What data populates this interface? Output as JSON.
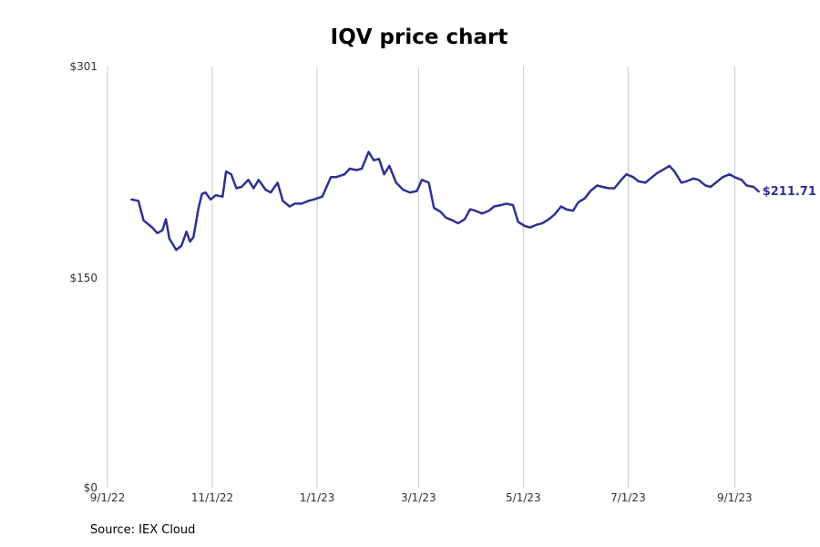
{
  "chart_data": {
    "type": "line",
    "title": "IQV price chart",
    "source": "Source: IEX Cloud",
    "xlabel": "",
    "ylabel": "",
    "ylim": [
      0,
      301
    ],
    "xlim": [
      "2022-09-01",
      "2023-09-30"
    ],
    "y_ticks": [
      {
        "value": 0,
        "label": "$0"
      },
      {
        "value": 150,
        "label": "$150"
      },
      {
        "value": 301,
        "label": "$301"
      }
    ],
    "x_ticks": [
      {
        "date": "2022-09-01",
        "label": "9/1/22"
      },
      {
        "date": "2022-11-01",
        "label": "11/1/22"
      },
      {
        "date": "2023-01-01",
        "label": "1/1/23"
      },
      {
        "date": "2023-03-01",
        "label": "3/1/23"
      },
      {
        "date": "2023-05-01",
        "label": "5/1/23"
      },
      {
        "date": "2023-07-01",
        "label": "7/1/23"
      },
      {
        "date": "2023-09-01",
        "label": "9/1/23"
      }
    ],
    "grid": "vertical",
    "last_value_label": "$211.71",
    "colors": {
      "line": "#2e3192",
      "grid": "#c8c8c8"
    },
    "series": [
      {
        "points": [
          [
            "2022-09-15",
            206
          ],
          [
            "2022-09-19",
            205
          ],
          [
            "2022-09-22",
            191
          ],
          [
            "2022-09-27",
            186
          ],
          [
            "2022-09-30",
            182
          ],
          [
            "2022-10-03",
            184
          ],
          [
            "2022-10-05",
            192
          ],
          [
            "2022-10-07",
            178
          ],
          [
            "2022-10-11",
            170
          ],
          [
            "2022-10-14",
            173
          ],
          [
            "2022-10-17",
            183
          ],
          [
            "2022-10-19",
            176
          ],
          [
            "2022-10-21",
            179
          ],
          [
            "2022-10-24",
            200
          ],
          [
            "2022-10-26",
            210
          ],
          [
            "2022-10-28",
            211
          ],
          [
            "2022-10-31",
            206
          ],
          [
            "2022-11-03",
            209
          ],
          [
            "2022-11-07",
            208
          ],
          [
            "2022-11-09",
            226
          ],
          [
            "2022-11-12",
            224
          ],
          [
            "2022-11-15",
            214
          ],
          [
            "2022-11-18",
            215
          ],
          [
            "2022-11-22",
            220
          ],
          [
            "2022-11-25",
            214
          ],
          [
            "2022-11-28",
            220
          ],
          [
            "2022-12-02",
            213
          ],
          [
            "2022-12-05",
            211
          ],
          [
            "2022-12-09",
            218
          ],
          [
            "2022-12-12",
            205
          ],
          [
            "2022-12-16",
            201
          ],
          [
            "2022-12-19",
            203
          ],
          [
            "2022-12-23",
            203
          ],
          [
            "2022-12-27",
            205
          ],
          [
            "2022-12-30",
            206
          ],
          [
            "2023-01-04",
            208
          ],
          [
            "2023-01-09",
            222
          ],
          [
            "2023-01-12",
            222
          ],
          [
            "2023-01-17",
            224
          ],
          [
            "2023-01-20",
            228
          ],
          [
            "2023-01-24",
            227
          ],
          [
            "2023-01-27",
            228
          ],
          [
            "2023-01-31",
            240
          ],
          [
            "2023-02-03",
            234
          ],
          [
            "2023-02-06",
            235
          ],
          [
            "2023-02-09",
            224
          ],
          [
            "2023-02-12",
            230
          ],
          [
            "2023-02-16",
            218
          ],
          [
            "2023-02-20",
            213
          ],
          [
            "2023-02-24",
            211
          ],
          [
            "2023-02-28",
            212
          ],
          [
            "2023-03-03",
            220
          ],
          [
            "2023-03-07",
            218
          ],
          [
            "2023-03-10",
            200
          ],
          [
            "2023-03-14",
            197
          ],
          [
            "2023-03-17",
            193
          ],
          [
            "2023-03-21",
            191
          ],
          [
            "2023-03-24",
            189
          ],
          [
            "2023-03-28",
            192
          ],
          [
            "2023-03-31",
            199
          ],
          [
            "2023-04-03",
            198
          ],
          [
            "2023-04-07",
            196
          ],
          [
            "2023-04-11",
            198
          ],
          [
            "2023-04-14",
            201
          ],
          [
            "2023-04-18",
            202
          ],
          [
            "2023-04-21",
            203
          ],
          [
            "2023-04-25",
            202
          ],
          [
            "2023-04-28",
            190
          ],
          [
            "2023-05-02",
            187
          ],
          [
            "2023-05-05",
            186
          ],
          [
            "2023-05-09",
            188
          ],
          [
            "2023-05-12",
            189
          ],
          [
            "2023-05-16",
            192
          ],
          [
            "2023-05-19",
            195
          ],
          [
            "2023-05-23",
            201
          ],
          [
            "2023-05-26",
            199
          ],
          [
            "2023-05-30",
            198
          ],
          [
            "2023-06-02",
            204
          ],
          [
            "2023-06-06",
            207
          ],
          [
            "2023-06-09",
            212
          ],
          [
            "2023-06-13",
            216
          ],
          [
            "2023-06-16",
            215
          ],
          [
            "2023-06-20",
            214
          ],
          [
            "2023-06-23",
            214
          ],
          [
            "2023-06-27",
            220
          ],
          [
            "2023-06-30",
            224
          ],
          [
            "2023-07-04",
            222
          ],
          [
            "2023-07-07",
            219
          ],
          [
            "2023-07-11",
            218
          ],
          [
            "2023-07-14",
            221
          ],
          [
            "2023-07-18",
            225
          ],
          [
            "2023-07-21",
            227
          ],
          [
            "2023-07-25",
            230
          ],
          [
            "2023-07-28",
            226
          ],
          [
            "2023-08-01",
            218
          ],
          [
            "2023-08-04",
            219
          ],
          [
            "2023-08-08",
            221
          ],
          [
            "2023-08-11",
            220
          ],
          [
            "2023-08-15",
            216
          ],
          [
            "2023-08-18",
            215
          ],
          [
            "2023-08-22",
            219
          ],
          [
            "2023-08-25",
            222
          ],
          [
            "2023-08-29",
            224
          ],
          [
            "2023-09-01",
            222
          ],
          [
            "2023-09-05",
            220
          ],
          [
            "2023-09-08",
            216
          ],
          [
            "2023-09-12",
            215
          ],
          [
            "2023-09-15",
            211.71
          ]
        ]
      }
    ]
  }
}
